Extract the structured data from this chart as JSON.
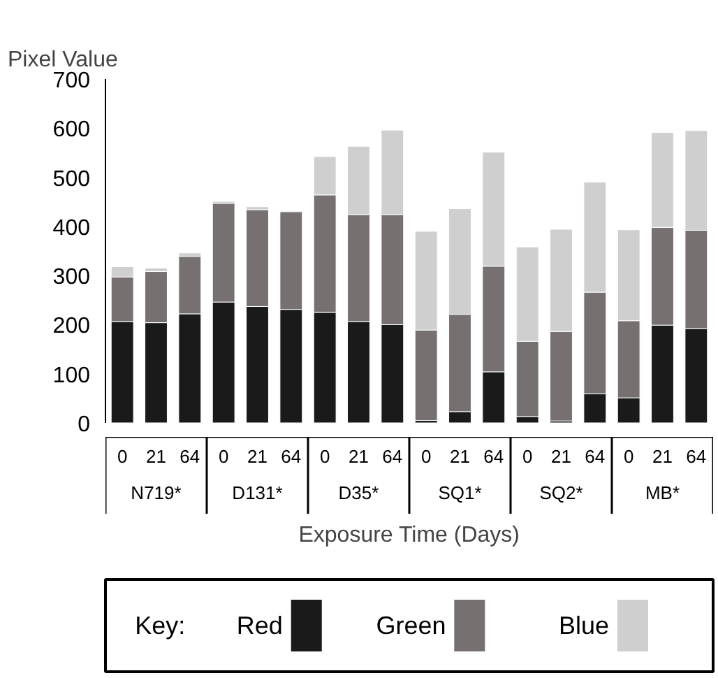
{
  "chart_data": {
    "type": "bar",
    "stacked": true,
    "ylabel": "Pixel Value",
    "xlabel": "Exposure Time (Days)",
    "legend_title": "Key:",
    "legend": "bottom",
    "grid": false,
    "categories": [
      "0",
      "21",
      "64",
      "0",
      "21",
      "64",
      "0",
      "21",
      "64",
      "0",
      "21",
      "64",
      "0",
      "21",
      "64",
      "0",
      "21",
      "64"
    ],
    "annotations": [
      "N719*",
      "D131*",
      "D35*",
      "SQ1*",
      "SQ2*",
      "MB*"
    ],
    "ylim": [
      0,
      700
    ],
    "yticks": [
      0,
      100,
      200,
      300,
      400,
      500,
      600,
      700
    ],
    "series": [
      {
        "name": "Red",
        "color": "#1a1a1a",
        "values": [
          206,
          204,
          222,
          246,
          237,
          231,
          225,
          206,
          200,
          5,
          23,
          104,
          13,
          4,
          59,
          51,
          199,
          192
        ]
      },
      {
        "name": "Green",
        "color": "#767170",
        "values": [
          91,
          104,
          117,
          201,
          197,
          199,
          239,
          218,
          224,
          184,
          198,
          215,
          153,
          182,
          207,
          157,
          199,
          200
        ]
      },
      {
        "name": "Blue",
        "color": "#d0cfcf",
        "values": [
          21,
          7,
          7,
          4,
          6,
          2,
          78,
          139,
          172,
          201,
          215,
          232,
          192,
          208,
          224,
          185,
          193,
          203
        ]
      }
    ]
  }
}
